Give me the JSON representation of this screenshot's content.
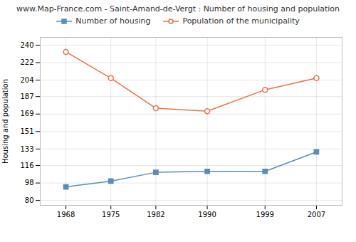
{
  "chart_data": {
    "type": "line",
    "title": "www.Map-France.com - Saint-Amand-de-Vergt : Number of housing and population",
    "ylabel": "Housing and population",
    "x": [
      1968,
      1975,
      1982,
      1990,
      1999,
      2007
    ],
    "series": [
      {
        "name": "Number of housing",
        "color": "#5b8db8",
        "marker": "square",
        "values": [
          94,
          100,
          109,
          110,
          110,
          130
        ]
      },
      {
        "name": "Population of the municipality",
        "color": "#e8724a",
        "marker": "circle",
        "values": [
          233,
          206,
          175,
          172,
          194,
          206
        ]
      }
    ],
    "xlim": [
      1964,
      2011
    ],
    "xticks": [
      1968,
      1975,
      1982,
      1990,
      1999,
      2007
    ],
    "ylim": [
      75,
      248
    ],
    "yticks": [
      80,
      98,
      116,
      133,
      151,
      169,
      187,
      204,
      222,
      240
    ],
    "grid": true,
    "legend": "top"
  }
}
